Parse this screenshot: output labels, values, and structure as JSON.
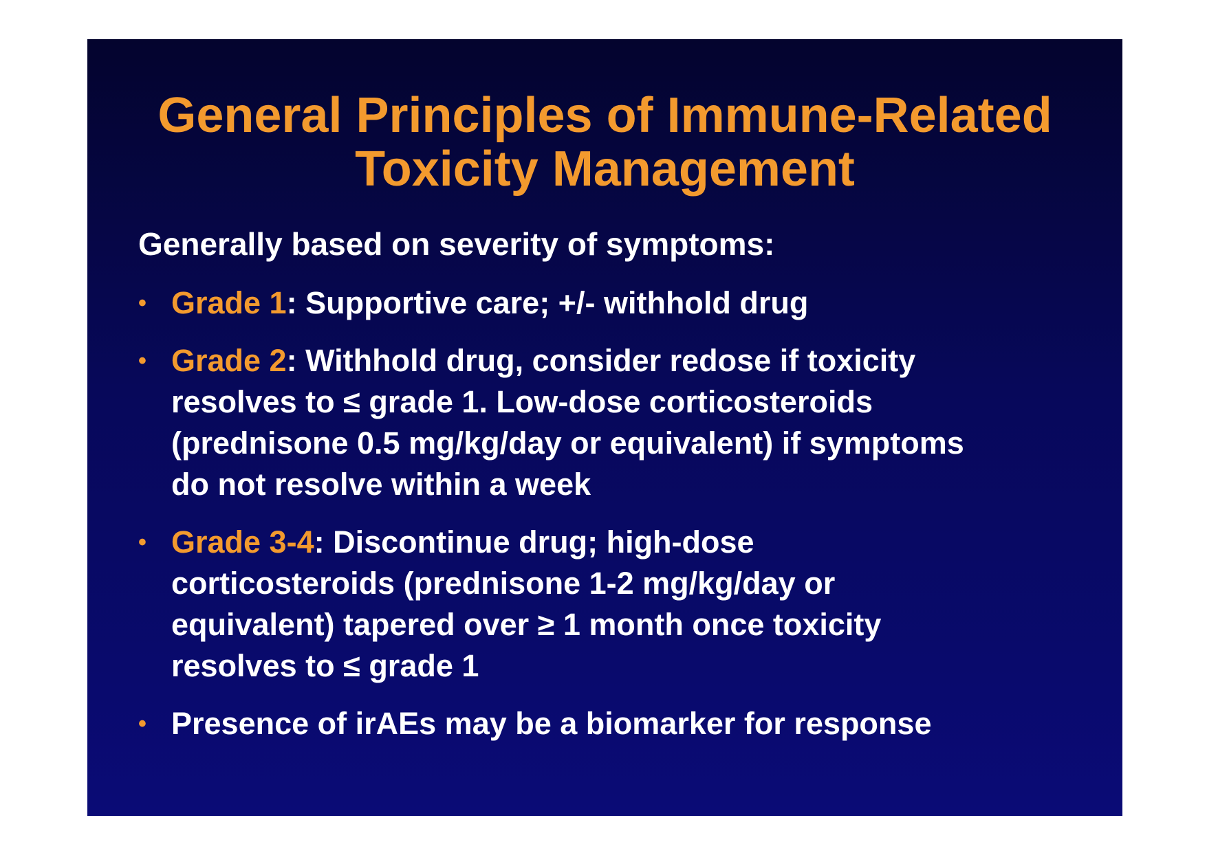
{
  "slide": {
    "title_lines": [
      "General Principles of Immune-Related",
      "Toxicity Management"
    ],
    "intro": "Generally based on severity of symptoms:",
    "bullet_symbol": "•",
    "bullets": [
      {
        "grade": "Grade 1",
        "lines": [
          ": Supportive care; +/- withhold drug"
        ]
      },
      {
        "grade": "Grade 2",
        "lines": [
          ": Withhold drug, consider redose if toxicity",
          "resolves to ≤ grade 1. Low-dose corticosteroids",
          "(prednisone 0.5 mg/kg/day or equivalent) if symptoms",
          "do not resolve within a week"
        ]
      },
      {
        "grade": "Grade 3-4",
        "lines": [
          ": Discontinue drug; high-dose",
          "corticosteroids (prednisone 1-2 mg/kg/day or",
          "equivalent) tapered over ≥ 1 month once toxicity",
          "resolves to ≤ grade 1"
        ]
      },
      {
        "grade": "",
        "lines": [
          "Presence of irAEs may be a biomarker for response"
        ]
      }
    ],
    "colors": {
      "accent": "#f39a2e",
      "text": "#ffffff",
      "background_top": "#04042e",
      "background_bottom": "#0a0b76",
      "page": "#ffffff"
    }
  }
}
